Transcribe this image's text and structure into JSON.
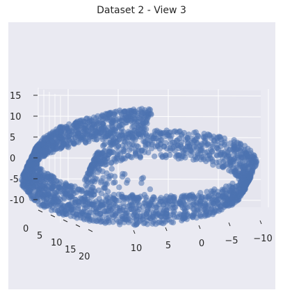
{
  "title": "Dataset 2 - View 3",
  "colors": {
    "background": "#eaeaf2",
    "pane": "#e5e5ee",
    "grid": "#ffffff",
    "points": "#4c72b0"
  },
  "chart_data": {
    "type": "scatter",
    "projection": "3d",
    "title": "Dataset 2 - View 3",
    "description": "3D swiss-roll point cloud viewed from the front",
    "x_ticks": [
      10,
      5,
      0,
      -5,
      -10
    ],
    "y_ticks": [
      0,
      5,
      10,
      15,
      20
    ],
    "z_ticks": [
      15,
      10,
      5,
      0,
      -5,
      -10
    ],
    "xlim": [
      -11,
      14
    ],
    "ylim": [
      0,
      21
    ],
    "zlim": [
      -12,
      16
    ],
    "grid": true,
    "legend": false,
    "series": [
      {
        "values_shape": "swiss roll (spiral in x-z plane, extruded along y)",
        "t_range": [
          4.7,
          14.1
        ],
        "y_range": [
          0,
          21
        ]
      }
    ]
  }
}
